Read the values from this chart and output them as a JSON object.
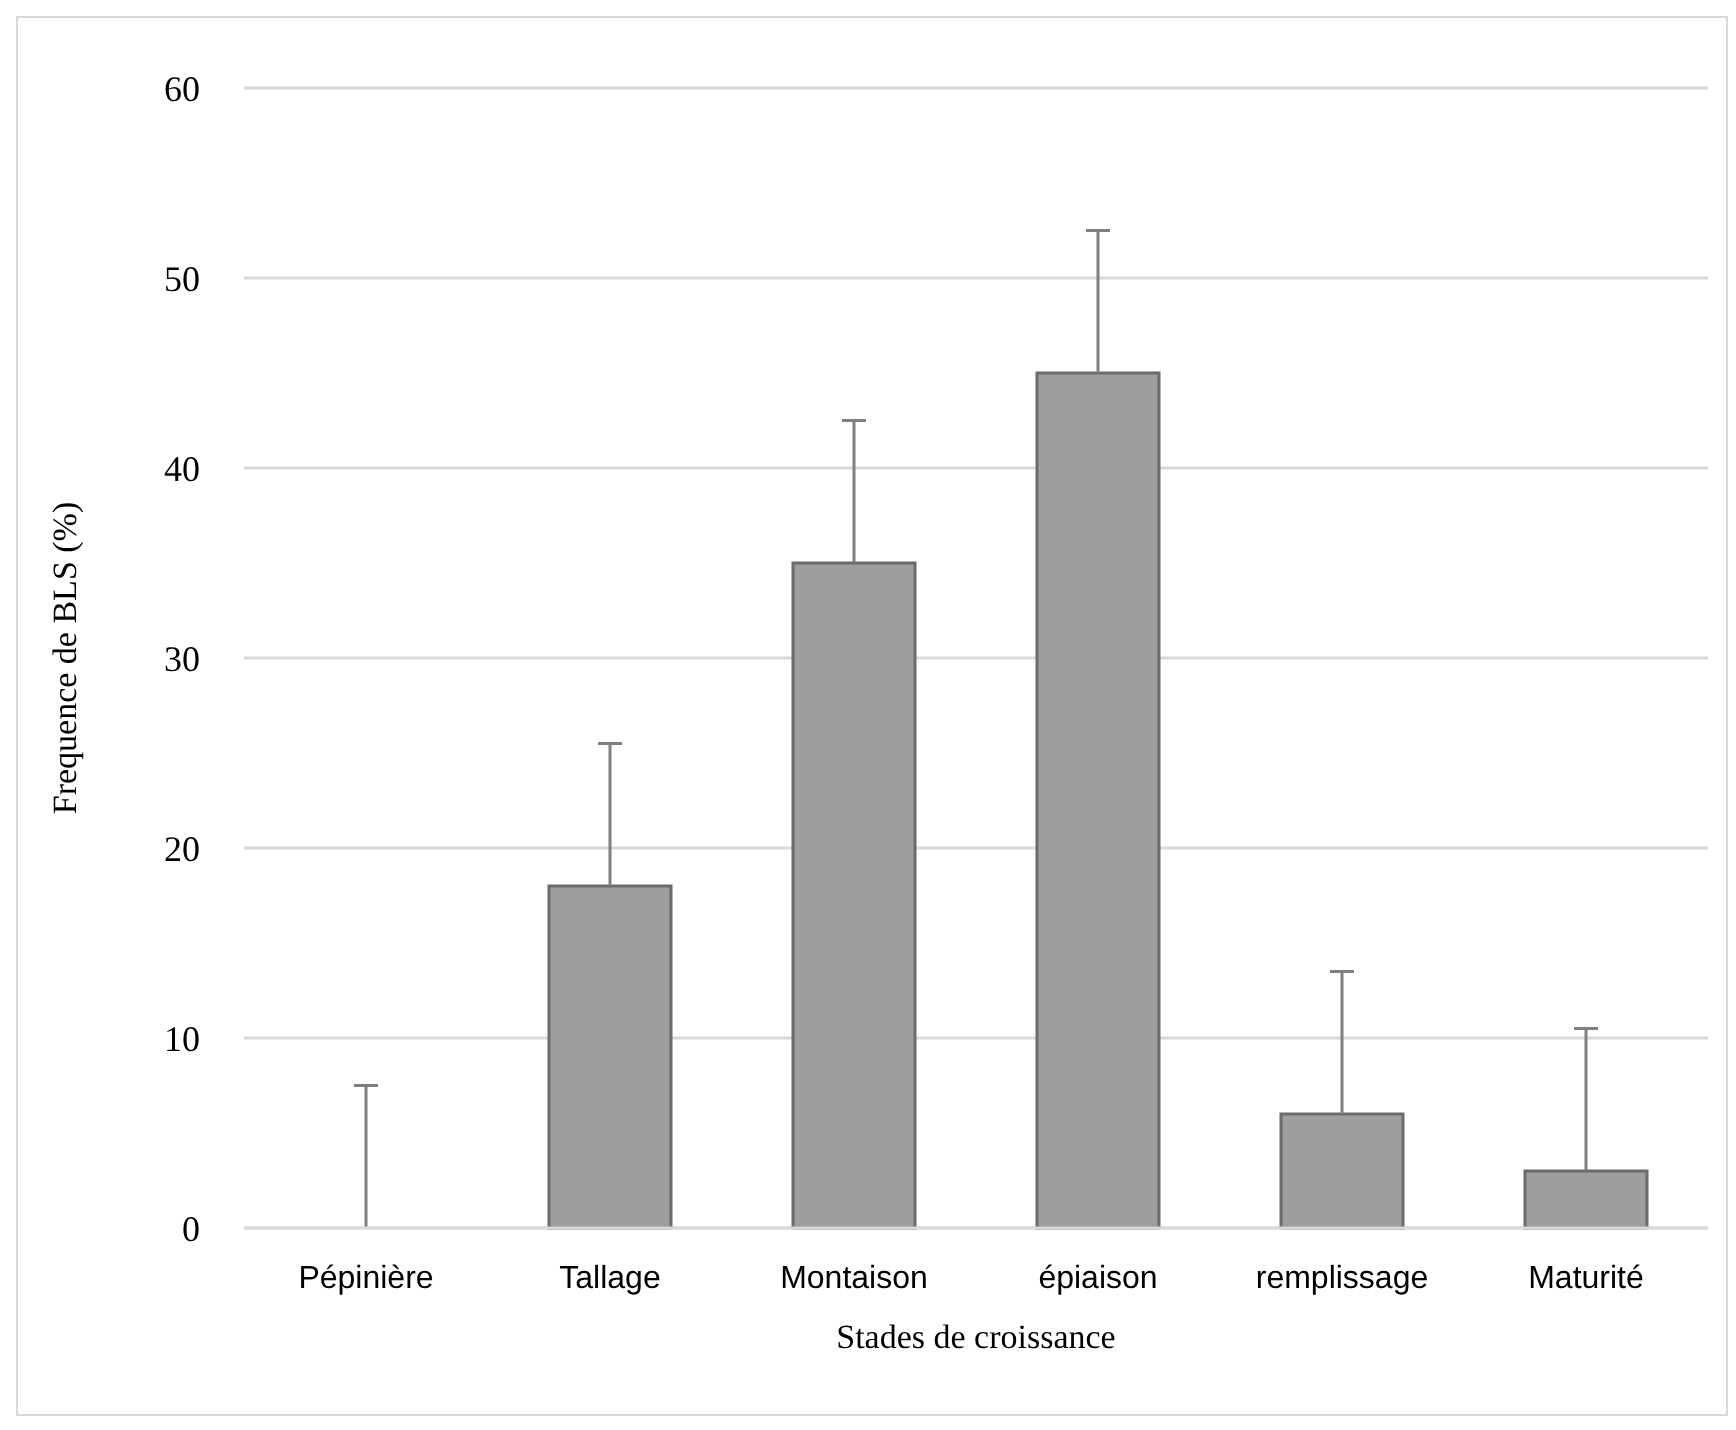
{
  "chart_data": {
    "type": "bar",
    "xlabel": "Stades de croissance",
    "ylabel": "Frequence de BLS (%)",
    "categories": [
      "Pépinière",
      "Tallage",
      "Montaison",
      "épiaison",
      "remplissage",
      "Maturité"
    ],
    "values": [
      0,
      18,
      35,
      45,
      6,
      3
    ],
    "errors": [
      [
        0,
        7.5
      ],
      [
        18,
        25.5
      ],
      [
        35,
        42.5
      ],
      [
        45,
        52.5
      ],
      [
        6,
        13.5
      ],
      [
        3,
        10.5
      ]
    ],
    "color": "#9e9e9e",
    "ylim": [
      0,
      60
    ],
    "yticks": [
      0,
      10,
      20,
      30,
      40,
      50,
      60
    ],
    "grid": "y"
  }
}
